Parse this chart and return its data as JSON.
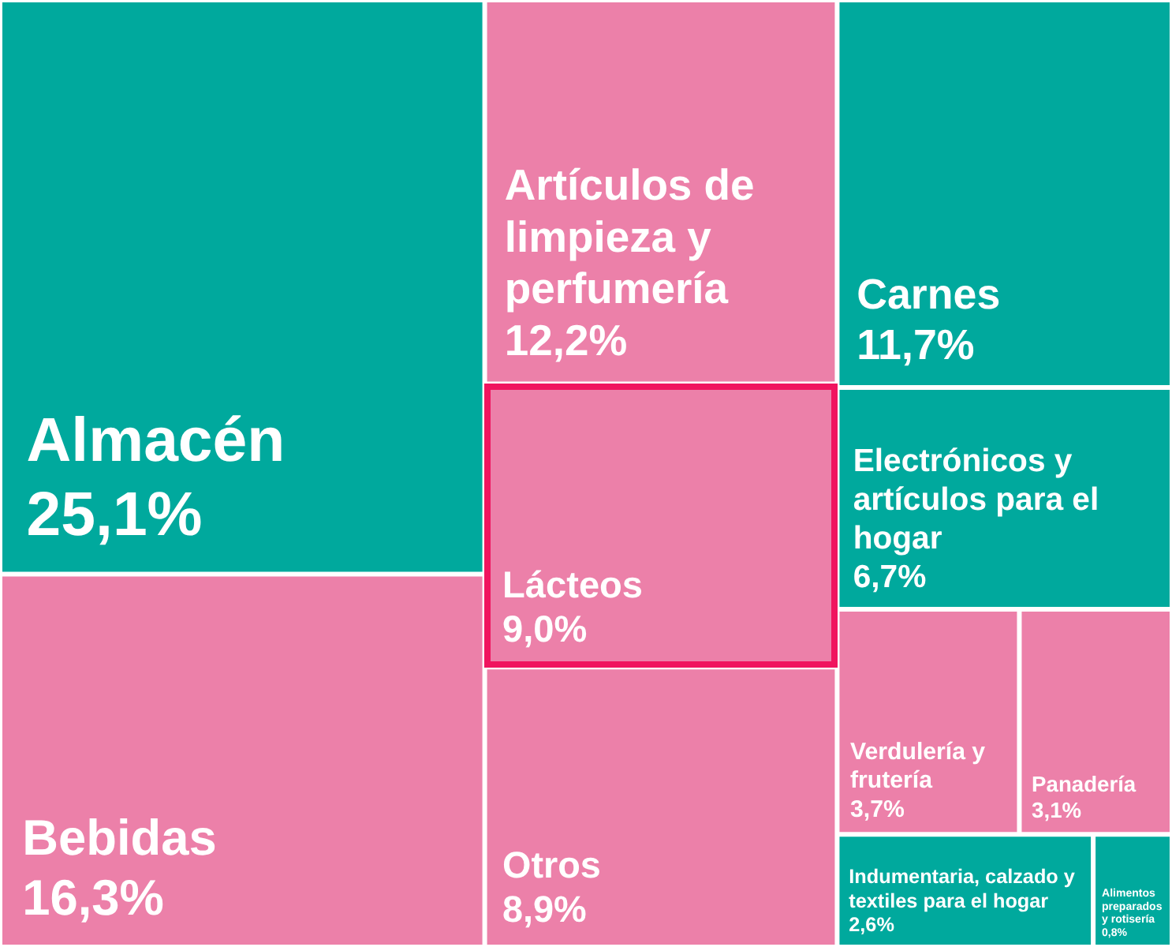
{
  "chart_data": {
    "type": "other",
    "categories": [
      "Almacén",
      "Bebidas",
      "Artículos de limpieza y perfumería",
      "Lácteos",
      "Otros",
      "Carnes",
      "Electrónicos y artículos para el hogar",
      "Verdulería y frutería",
      "Panadería",
      "Indumentaria, calzado y textiles para el hogar",
      "Alimentos preparados y rotisería"
    ],
    "values": [
      25.1,
      16.3,
      12.2,
      9.0,
      8.9,
      11.7,
      6.7,
      3.7,
      3.1,
      2.6,
      0.8
    ],
    "value_labels": [
      "25,1%",
      "16,3%",
      "12,2%",
      "9,0%",
      "8,9%",
      "11,7%",
      "6,7%",
      "3,7%",
      "3,1%",
      "2,6%",
      "0,8%"
    ],
    "colors": [
      "#00a99d",
      "#ec80a9",
      "#ec80a9",
      "#ec80a9",
      "#ec80a9",
      "#00a99d",
      "#00a99d",
      "#ec80a9",
      "#ec80a9",
      "#00a99d",
      "#00a99d"
    ]
  }
}
